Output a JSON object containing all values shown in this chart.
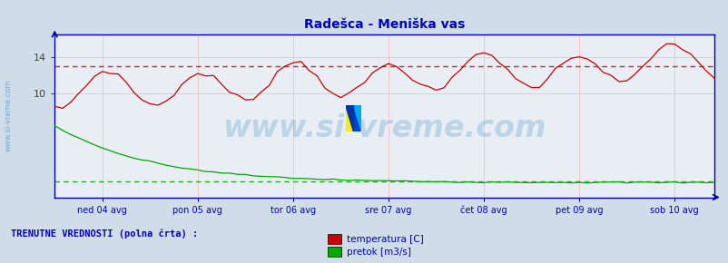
{
  "title": "Radešca - Meniška vas",
  "title_color": "#0000cc",
  "title_fontsize": 10,
  "bg_color": "#d0dce8",
  "plot_bg_color": "#e8eef4",
  "watermark": "www.si-vreme.com",
  "watermark_color": "#5599cc",
  "watermark_alpha": 0.3,
  "watermark_fontsize": 24,
  "x_label_color": "#0000cc",
  "y_label_color": "#444444",
  "grid_color": "#ffaaaa",
  "grid_alpha": 0.7,
  "axis_color": "#0000bb",
  "avg_temp_value": 13.0,
  "avg_flow_value": 0.28,
  "temp_color": "#cc0000",
  "flow_color": "#00aa00",
  "xlabel_items": [
    "ned 04 avg",
    "pon 05 avg",
    "tor 06 avg",
    "sre 07 avg",
    "čet 08 avg",
    "pet 09 avg",
    "sob 10 avg"
  ],
  "yticks_temp": [
    10,
    14
  ],
  "ylim": [
    -1.5,
    16.5
  ],
  "n_points": 84,
  "bottom_text": "TRENUTNE VREDNOSTI (polna črta) :",
  "bottom_text_color": "#0000cc",
  "legend_labels": [
    "temperatura [C]",
    "pretok [m3/s]"
  ],
  "legend_colors": [
    "#cc0000",
    "#00aa00"
  ],
  "sidebar_text": "www.si-vreme.com",
  "sidebar_color": "#5599cc"
}
